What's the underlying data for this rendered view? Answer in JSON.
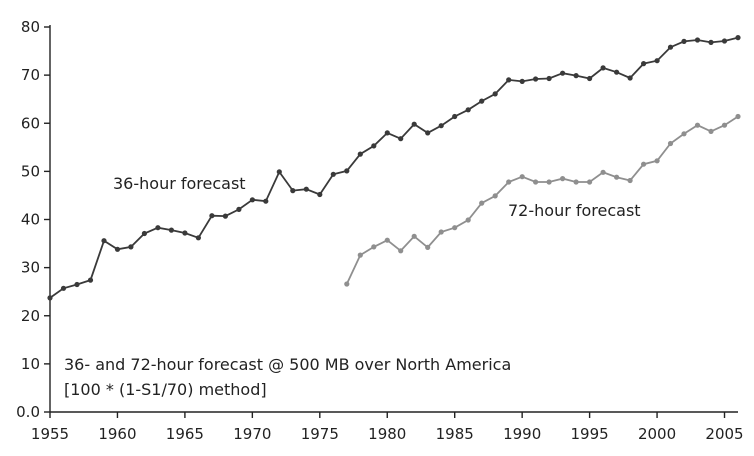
{
  "chart_data": {
    "type": "line",
    "title": "",
    "xlabel": "",
    "ylabel": "",
    "xlim": [
      1955,
      2006
    ],
    "ylim": [
      0,
      80
    ],
    "x_ticks": [
      "1955",
      "1960",
      "1965",
      "1970",
      "1975",
      "1980",
      "1985",
      "1990",
      "1995",
      "2000",
      "2005"
    ],
    "y_ticks": [
      "0.0",
      "10",
      "20",
      "30",
      "40",
      "50",
      "60",
      "70",
      "80"
    ],
    "grid": false,
    "legend": "none",
    "annotations": {
      "series_36_label": "36-hour forecast",
      "series_72_label": "72-hour forecast",
      "note_line1": "36- and 72-hour forecast @ 500 MB over North America",
      "note_line2": "[100 * (1-S1/70) method]"
    },
    "series": [
      {
        "key": "36h",
        "color": "#3a3a3a",
        "x": [
          1955,
          1956,
          1957,
          1958,
          1959,
          1960,
          1961,
          1962,
          1963,
          1964,
          1965,
          1966,
          1967,
          1968,
          1969,
          1970,
          1971,
          1972,
          1973,
          1974,
          1975,
          1976,
          1977,
          1978,
          1979,
          1980,
          1981,
          1982,
          1983,
          1984,
          1985,
          1986,
          1987,
          1988,
          1989,
          1990,
          1991,
          1992,
          1993,
          1994,
          1995,
          1996,
          1997,
          1998,
          1999,
          2000,
          2001,
          2002,
          2003,
          2004,
          2005,
          2006
        ],
        "values": [
          23.7,
          25.7,
          26.5,
          27.4,
          35.6,
          33.8,
          34.3,
          37.1,
          38.3,
          37.8,
          37.2,
          36.2,
          40.8,
          40.7,
          42.1,
          44.1,
          43.8,
          49.9,
          46.0,
          46.3,
          45.2,
          49.4,
          50.1,
          53.6,
          55.3,
          58.0,
          56.8,
          59.8,
          58.0,
          59.5,
          61.4,
          62.8,
          64.6,
          66.1,
          69.0,
          68.7,
          69.2,
          69.3,
          70.4,
          69.9,
          69.3,
          71.5,
          70.6,
          69.4,
          72.4,
          73.0,
          75.8,
          77.0,
          77.3,
          76.8,
          77.1,
          77.8
        ]
      },
      {
        "key": "72h",
        "color": "#8f8f8f",
        "x": [
          1977,
          1978,
          1979,
          1980,
          1981,
          1982,
          1983,
          1984,
          1985,
          1986,
          1987,
          1988,
          1989,
          1990,
          1991,
          1992,
          1993,
          1994,
          1995,
          1996,
          1997,
          1998,
          1999,
          2000,
          2001,
          2002,
          2003,
          2004,
          2005,
          2006
        ],
        "values": [
          26.6,
          32.6,
          34.3,
          35.7,
          33.5,
          36.5,
          34.2,
          37.4,
          38.3,
          39.9,
          43.4,
          44.9,
          47.8,
          48.9,
          47.8,
          47.8,
          48.5,
          47.8,
          47.8,
          49.8,
          48.8,
          48.1,
          51.5,
          52.2,
          55.8,
          57.8,
          59.6,
          58.3,
          59.6,
          61.4
        ]
      }
    ]
  }
}
